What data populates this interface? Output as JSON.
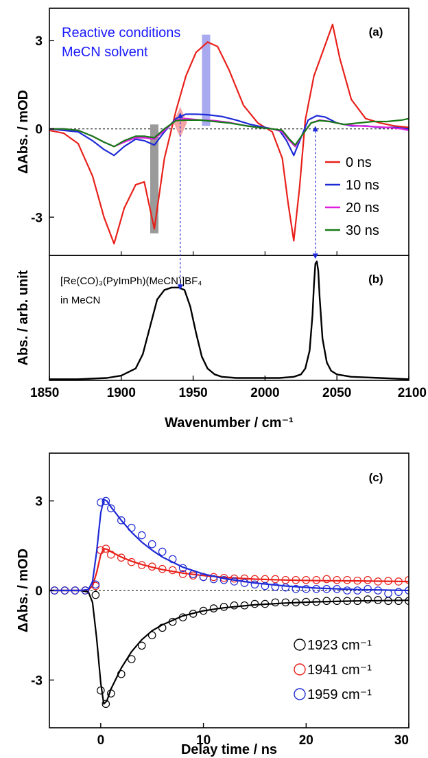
{
  "chart_data": [
    {
      "type": "line",
      "panel_label": "(a)",
      "annotation": [
        "Reactive conditions",
        "MeCN solvent"
      ],
      "xlim": [
        1850,
        2100
      ],
      "ylim": [
        -4.3,
        4.1
      ],
      "ylabel": "ΔAbs. / mOD",
      "yticks": [
        {
          "v": -3,
          "label": "-3"
        },
        {
          "v": 0,
          "label": "0"
        },
        {
          "v": 3,
          "label": "3"
        }
      ],
      "zero_line": true,
      "legend_position": "right",
      "markers": [
        {
          "x": 1923,
          "from": -3.55,
          "to": 0.15,
          "color": "#9a9a9a",
          "shape": "bar"
        },
        {
          "x": 1941,
          "from": -0.3,
          "to": 0.75,
          "color": "#f4a6a6",
          "shape": "diamond"
        },
        {
          "x": 1959,
          "from": 0.1,
          "to": 3.2,
          "color": "#a9a9f0",
          "shape": "bar"
        }
      ],
      "series": [
        {
          "name": "0 ns",
          "color": "#e8201a",
          "x": [
            1850,
            1860,
            1870,
            1880,
            1888,
            1895,
            1902,
            1910,
            1916,
            1923,
            1930,
            1938,
            1945,
            1952,
            1960,
            1967,
            1975,
            1985,
            1995,
            2005,
            2012,
            2016,
            2020,
            2024,
            2028,
            2034,
            2040,
            2047,
            2052,
            2060,
            2070,
            2080,
            2090,
            2100
          ],
          "y": [
            -0.05,
            -0.15,
            -0.5,
            -1.6,
            -3.0,
            -3.9,
            -2.7,
            -1.9,
            -1.8,
            -3.4,
            -1.0,
            0.6,
            1.8,
            2.6,
            2.95,
            2.8,
            2.0,
            0.8,
            0.2,
            -0.1,
            -1.0,
            -2.5,
            -3.8,
            -2.0,
            0.3,
            1.8,
            2.6,
            3.55,
            2.4,
            1.0,
            0.35,
            0.2,
            0.1,
            0.05
          ]
        },
        {
          "name": "10 ns",
          "color": "#1e2ad6",
          "x": [
            1850,
            1860,
            1870,
            1880,
            1888,
            1895,
            1902,
            1910,
            1916,
            1923,
            1930,
            1938,
            1945,
            1952,
            1960,
            1970,
            1980,
            1990,
            2000,
            2010,
            2015,
            2020,
            2025,
            2030,
            2036,
            2042,
            2050,
            2060,
            2070,
            2080,
            2090,
            2100
          ],
          "y": [
            0.0,
            -0.05,
            -0.1,
            -0.4,
            -0.7,
            -0.9,
            -0.6,
            -0.35,
            -0.4,
            -0.55,
            -0.1,
            0.35,
            0.5,
            0.5,
            0.48,
            0.42,
            0.3,
            0.15,
            0.05,
            -0.05,
            -0.4,
            -0.9,
            -0.3,
            0.3,
            0.45,
            0.4,
            0.2,
            0.1,
            0.1,
            0.05,
            0.05,
            0.0
          ]
        },
        {
          "name": "20 ns",
          "color": "#e020e0",
          "x": [
            1850,
            1860,
            1870,
            1880,
            1888,
            1895,
            1902,
            1910,
            1916,
            1923,
            1930,
            1938,
            1945,
            1955,
            1965,
            1975,
            1985,
            1995,
            2005,
            2012,
            2017,
            2021,
            2026,
            2032,
            2038,
            2045,
            2055,
            2065,
            2075,
            2085,
            2095,
            2100
          ],
          "y": [
            0.0,
            0.0,
            -0.05,
            -0.25,
            -0.45,
            -0.6,
            -0.45,
            -0.3,
            -0.3,
            -0.35,
            -0.05,
            0.3,
            0.35,
            0.3,
            0.28,
            0.22,
            0.12,
            0.05,
            0.0,
            -0.1,
            -0.4,
            -0.6,
            -0.2,
            0.2,
            0.3,
            0.25,
            0.15,
            0.1,
            0.08,
            0.05,
            0.0,
            -0.05
          ]
        },
        {
          "name": "30 ns",
          "color": "#167a16",
          "x": [
            1850,
            1860,
            1870,
            1880,
            1888,
            1895,
            1902,
            1910,
            1916,
            1923,
            1930,
            1938,
            1945,
            1955,
            1965,
            1975,
            1985,
            1995,
            2005,
            2012,
            2017,
            2021,
            2026,
            2032,
            2038,
            2045,
            2055,
            2065,
            2075,
            2085,
            2095,
            2100
          ],
          "y": [
            0.0,
            0.0,
            -0.05,
            -0.25,
            -0.45,
            -0.6,
            -0.4,
            -0.25,
            -0.25,
            -0.3,
            0.0,
            0.28,
            0.3,
            0.3,
            0.25,
            0.2,
            0.12,
            0.05,
            0.0,
            -0.05,
            -0.35,
            -0.55,
            -0.2,
            0.2,
            0.28,
            0.25,
            0.15,
            0.2,
            0.25,
            0.25,
            0.3,
            0.35
          ]
        }
      ]
    },
    {
      "type": "line",
      "panel_label": "(b)",
      "compound": "[Re(CO)₃(PyImPh)(MeCN)]BF₄",
      "compound_solvent": "in MeCN",
      "xlim": [
        1850,
        2100
      ],
      "ylim": [
        0,
        1.05
      ],
      "xticks": [
        {
          "v": 1850,
          "label": "1850"
        },
        {
          "v": 1900,
          "label": "1900"
        },
        {
          "v": 1950,
          "label": "1950"
        },
        {
          "v": 2000,
          "label": "2000"
        },
        {
          "v": 2050,
          "label": "2050"
        },
        {
          "v": 2100,
          "label": "2100"
        }
      ],
      "xlabel": "Wavenumber / cm⁻¹",
      "ylabel": "Abs. / arb. unit",
      "links": [
        {
          "x": 1941,
          "y_from": 2.5,
          "y_to": 0.76
        },
        {
          "x": 2035,
          "y_from": 0.55,
          "y_to": 1.02
        }
      ],
      "series": [
        {
          "name": "",
          "color": "#000000",
          "x": [
            1850,
            1870,
            1890,
            1900,
            1910,
            1915,
            1920,
            1925,
            1930,
            1935,
            1940,
            1944,
            1948,
            1952,
            1956,
            1960,
            1965,
            1970,
            1980,
            1990,
            2000,
            2010,
            2020,
            2025,
            2028,
            2031,
            2033,
            2034,
            2035,
            2036,
            2037,
            2038,
            2040,
            2043,
            2046,
            2050,
            2060,
            2080,
            2100
          ],
          "y": [
            0.01,
            0.01,
            0.02,
            0.04,
            0.1,
            0.22,
            0.45,
            0.68,
            0.76,
            0.78,
            0.78,
            0.76,
            0.62,
            0.4,
            0.2,
            0.1,
            0.05,
            0.03,
            0.02,
            0.02,
            0.02,
            0.02,
            0.03,
            0.05,
            0.1,
            0.25,
            0.55,
            0.8,
            0.98,
            1.0,
            0.92,
            0.7,
            0.35,
            0.15,
            0.08,
            0.05,
            0.03,
            0.02,
            0.01
          ]
        }
      ]
    },
    {
      "type": "scatter",
      "panel_label": "(c)",
      "xlim": [
        -5,
        30
      ],
      "ylim": [
        -4.6,
        4.6
      ],
      "xticks": [
        {
          "v": 0,
          "label": "0"
        },
        {
          "v": 10,
          "label": "10"
        },
        {
          "v": 20,
          "label": "20"
        },
        {
          "v": 30,
          "label": "30"
        }
      ],
      "yticks": [
        {
          "v": -3,
          "label": "-3"
        },
        {
          "v": 0,
          "label": "0"
        },
        {
          "v": 3,
          "label": "3"
        }
      ],
      "xlabel": "Delay time / ns",
      "ylabel": "ΔAbs. / mOD",
      "zero_line": true,
      "legend_position": "bottom-right",
      "series": [
        {
          "name": "1923 cm⁻¹",
          "color": "#000000",
          "x": [
            -4.5,
            -3.5,
            -2.5,
            -1.5,
            -0.5,
            0.0,
            0.5,
            1.0,
            2.0,
            3.0,
            4.0,
            5.0,
            6.0,
            7.0,
            8.0,
            9.0,
            10.0,
            11.0,
            12.0,
            13.0,
            14.0,
            15.0,
            16.0,
            17.0,
            18.0,
            19.0,
            20.0,
            21.0,
            22.0,
            23.0,
            24.0,
            25.0,
            26.0,
            27.0,
            28.0,
            29.0,
            30.0
          ],
          "y": [
            0.0,
            0.0,
            0.0,
            0.0,
            -0.15,
            -3.35,
            -3.8,
            -3.45,
            -2.8,
            -2.3,
            -1.85,
            -1.5,
            -1.25,
            -1.05,
            -0.9,
            -0.78,
            -0.68,
            -0.6,
            -0.55,
            -0.5,
            -0.5,
            -0.45,
            -0.45,
            -0.4,
            -0.4,
            -0.4,
            -0.38,
            -0.38,
            -0.35,
            -0.35,
            -0.35,
            -0.35,
            -0.3,
            -0.32,
            -0.35,
            -0.35,
            -0.35
          ],
          "fit_x": [
            -5,
            -2,
            -1.2,
            -0.8,
            -0.4,
            0,
            0.3,
            0.6,
            1,
            2,
            3,
            4,
            5,
            6,
            8,
            10,
            12,
            15,
            18,
            21,
            25,
            30
          ],
          "fit_y": [
            0,
            0,
            -0.05,
            -0.4,
            -1.6,
            -3.1,
            -3.8,
            -3.7,
            -3.3,
            -2.6,
            -2.05,
            -1.65,
            -1.35,
            -1.15,
            -0.85,
            -0.68,
            -0.58,
            -0.48,
            -0.42,
            -0.38,
            -0.35,
            -0.33
          ]
        },
        {
          "name": "1941 cm⁻¹",
          "color": "#e8201a",
          "x": [
            -4.5,
            -3.5,
            -2.5,
            -1.5,
            -0.5,
            0.0,
            0.5,
            1.0,
            2.0,
            3.0,
            4.0,
            5.0,
            6.0,
            7.0,
            8.0,
            9.0,
            10.0,
            11.0,
            12.0,
            13.0,
            14.0,
            15.0,
            16.0,
            17.0,
            18.0,
            19.0,
            20.0,
            21.0,
            22.0,
            23.0,
            24.0,
            25.0,
            26.0,
            27.0,
            28.0,
            29.0,
            30.0
          ],
          "y": [
            0.0,
            0.0,
            0.0,
            0.0,
            0.15,
            1.35,
            1.4,
            1.2,
            1.1,
            0.95,
            0.85,
            0.8,
            0.72,
            0.68,
            0.55,
            0.5,
            0.45,
            0.45,
            0.42,
            0.4,
            0.4,
            0.38,
            0.38,
            0.38,
            0.35,
            0.35,
            0.35,
            0.35,
            0.38,
            0.35,
            0.35,
            0.33,
            0.35,
            0.3,
            0.32,
            0.3,
            0.35
          ],
          "fit_x": [
            -5,
            -2,
            -1.2,
            -0.8,
            -0.4,
            0,
            0.3,
            0.6,
            1,
            2,
            3,
            4,
            5,
            6,
            8,
            10,
            12,
            15,
            18,
            21,
            25,
            30
          ],
          "fit_y": [
            0,
            0,
            0.02,
            0.15,
            0.6,
            1.2,
            1.4,
            1.38,
            1.3,
            1.12,
            0.98,
            0.87,
            0.78,
            0.7,
            0.58,
            0.5,
            0.44,
            0.38,
            0.35,
            0.33,
            0.32,
            0.3
          ]
        },
        {
          "name": "1959 cm⁻¹",
          "color": "#1e2ad6",
          "x": [
            -4.5,
            -3.5,
            -2.5,
            -1.5,
            -0.5,
            0.0,
            0.5,
            1.0,
            2.0,
            3.0,
            4.0,
            5.0,
            6.0,
            7.0,
            8.0,
            9.0,
            10.0,
            11.0,
            12.0,
            13.0,
            14.0,
            15.0,
            16.0,
            17.0,
            18.0,
            19.0,
            20.0,
            21.0,
            22.0,
            23.0,
            24.0,
            25.0,
            26.0,
            27.0,
            28.0,
            29.0,
            30.0
          ],
          "y": [
            0.0,
            0.0,
            0.0,
            0.0,
            0.2,
            2.95,
            3.0,
            2.75,
            2.35,
            2.1,
            1.85,
            1.55,
            1.3,
            1.05,
            0.75,
            0.55,
            0.45,
            0.38,
            0.35,
            0.3,
            0.25,
            0.2,
            0.15,
            0.12,
            0.1,
            0.05,
            0.05,
            0.05,
            0.05,
            0.05,
            0.0,
            0.0,
            0.05,
            0.0,
            -0.1,
            -0.05,
            0.0
          ],
          "fit_x": [
            -5,
            -2,
            -1.2,
            -0.8,
            -0.4,
            0,
            0.3,
            0.6,
            1,
            2,
            3,
            4,
            5,
            6,
            8,
            10,
            12,
            15,
            18,
            21,
            25,
            30
          ],
          "fit_y": [
            0,
            0,
            0.03,
            0.3,
            1.3,
            2.6,
            3.05,
            3.0,
            2.8,
            2.35,
            1.95,
            1.62,
            1.35,
            1.12,
            0.78,
            0.55,
            0.4,
            0.25,
            0.15,
            0.08,
            0.03,
            0.0
          ]
        }
      ]
    }
  ]
}
